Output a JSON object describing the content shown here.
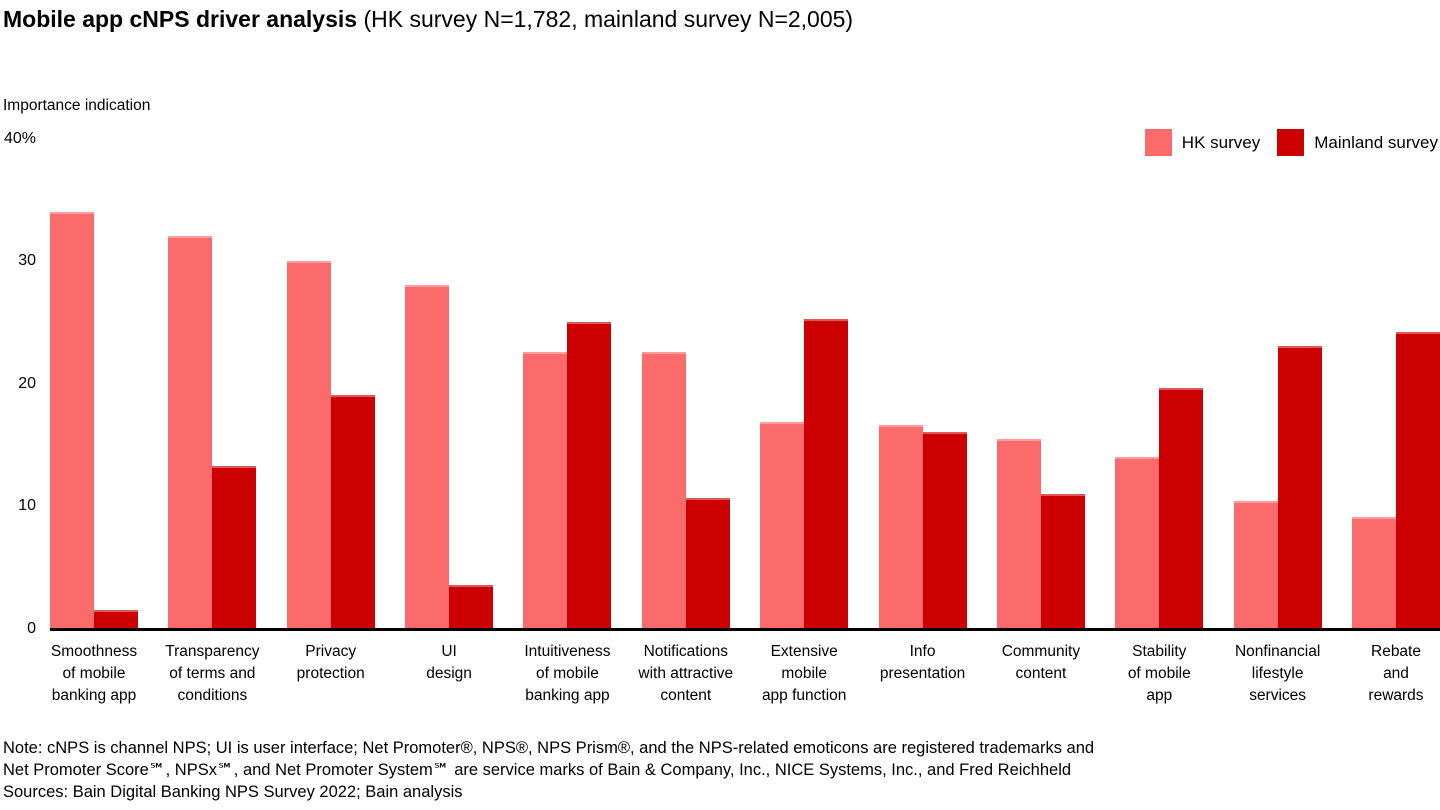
{
  "header": {
    "title_bold": "Mobile app cNPS driver analysis",
    "title_regular": " (HK survey N=1,782, mainland survey N=2,005)"
  },
  "chart_data": {
    "type": "bar",
    "title": "Mobile app cNPS driver analysis",
    "subtitle": "HK survey N=1,782, mainland survey N=2,005",
    "ylabel": "Importance indication",
    "xlabel": "",
    "ylim": [
      0,
      40
    ],
    "grid": false,
    "legend_position": "top-right",
    "yticks": [
      0,
      10,
      20,
      30,
      40
    ],
    "ytick_labels": [
      "0",
      "10",
      "20",
      "30",
      "40%"
    ],
    "categories": [
      "Smoothness\nof mobile\nbanking app",
      "Transparency\nof terms and\nconditions",
      "Privacy\nprotection",
      "UI\ndesign",
      "Intuitiveness\nof mobile\nbanking app",
      "Notifications\nwith attractive\ncontent",
      "Extensive\nmobile\napp function",
      "Info\npresentation",
      "Community\ncontent",
      "Stability\nof mobile\napp",
      "Nonfinancial\nlifestyle\nservices",
      "Rebate\nand\nrewards"
    ],
    "series": [
      {
        "name": "HK survey",
        "color": "#FC6B6B",
        "values": [
          34,
          32,
          30,
          28,
          22.5,
          22.5,
          16.8,
          16.6,
          15.4,
          14,
          10.4,
          9.1
        ]
      },
      {
        "name": "Mainland survey",
        "color": "#CC0000",
        "values": [
          1.5,
          13.2,
          19,
          3.5,
          25,
          10.6,
          25.2,
          16,
          10.9,
          19.6,
          23,
          24.2
        ]
      }
    ]
  },
  "footnote": {
    "lines": [
      "Note: cNPS is channel NPS; UI is user interface; Net Promoter®, NPS®, NPS Prism®, and the NPS-related emoticons are registered trademarks and",
      "Net Promoter Score℠, NPSx℠, and Net Promoter System℠ are service marks of Bain & Company, Inc., NICE Systems, Inc., and Fred Reichheld",
      "Sources: Bain Digital Banking NPS Survey 2022; Bain analysis"
    ]
  }
}
